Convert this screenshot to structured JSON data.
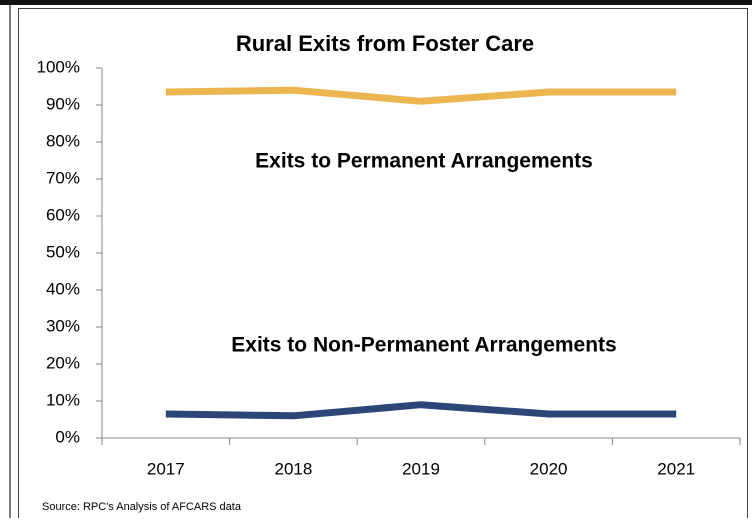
{
  "chart_data": {
    "type": "line",
    "title": "Rural Exits from Foster Care",
    "categories": [
      "2017",
      "2018",
      "2019",
      "2020",
      "2021"
    ],
    "series": [
      {
        "name": "Exits to Permanent Arrangements",
        "color": "#ebb54f",
        "values": [
          93.5,
          94,
          91,
          93.5,
          93.5
        ]
      },
      {
        "name": "Exits to Non-Permanent Arrangements",
        "color": "#2d4678",
        "values": [
          6.5,
          6,
          9,
          6.5,
          6.5
        ]
      }
    ],
    "ylim": [
      0,
      100
    ],
    "yticks": [
      {
        "value": 0,
        "label": "0%"
      },
      {
        "value": 10,
        "label": "10%"
      },
      {
        "value": 20,
        "label": "20%"
      },
      {
        "value": 30,
        "label": "30%"
      },
      {
        "value": 40,
        "label": "40%"
      },
      {
        "value": 50,
        "label": "50%"
      },
      {
        "value": 60,
        "label": "60%"
      },
      {
        "value": 70,
        "label": "70%"
      },
      {
        "value": 80,
        "label": "80%"
      },
      {
        "value": 90,
        "label": "90%"
      },
      {
        "value": 100,
        "label": "100%"
      }
    ],
    "grid": false,
    "source": "Source: RPC's Analysis of AFCARS data"
  }
}
